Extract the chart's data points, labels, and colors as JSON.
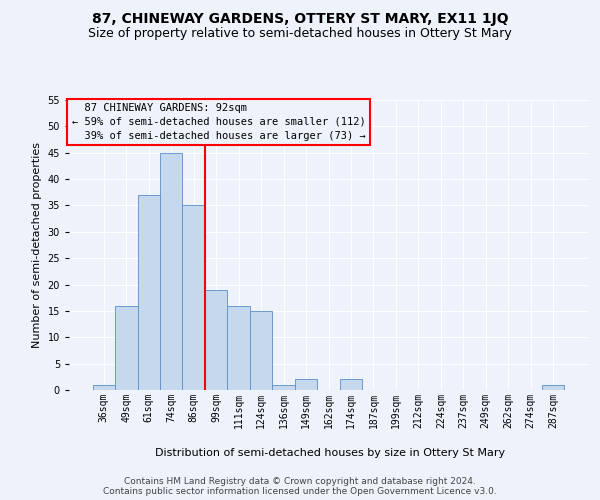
{
  "title": "87, CHINEWAY GARDENS, OTTERY ST MARY, EX11 1JQ",
  "subtitle": "Size of property relative to semi-detached houses in Ottery St Mary",
  "xlabel": "Distribution of semi-detached houses by size in Ottery St Mary",
  "ylabel": "Number of semi-detached properties",
  "bar_color": "#c5d8ed",
  "bar_edgecolor": "#5b8fc9",
  "categories": [
    "36sqm",
    "49sqm",
    "61sqm",
    "74sqm",
    "86sqm",
    "99sqm",
    "111sqm",
    "124sqm",
    "136sqm",
    "149sqm",
    "162sqm",
    "174sqm",
    "187sqm",
    "199sqm",
    "212sqm",
    "224sqm",
    "237sqm",
    "249sqm",
    "262sqm",
    "274sqm",
    "287sqm"
  ],
  "values": [
    1,
    16,
    37,
    45,
    35,
    19,
    16,
    15,
    1,
    2,
    0,
    2,
    0,
    0,
    0,
    0,
    0,
    0,
    0,
    0,
    1
  ],
  "ylim": [
    0,
    55
  ],
  "yticks": [
    0,
    5,
    10,
    15,
    20,
    25,
    30,
    35,
    40,
    45,
    50,
    55
  ],
  "property_label": "87 CHINEWAY GARDENS: 92sqm",
  "pct_smaller": 59,
  "n_smaller": 112,
  "pct_larger": 39,
  "n_larger": 73,
  "vline_position": 4.5,
  "footer_line1": "Contains HM Land Registry data © Crown copyright and database right 2024.",
  "footer_line2": "Contains public sector information licensed under the Open Government Licence v3.0.",
  "background_color": "#eef2fa",
  "grid_color": "#ffffff",
  "title_fontsize": 10,
  "subtitle_fontsize": 9,
  "axis_label_fontsize": 8,
  "tick_fontsize": 7,
  "annotation_fontsize": 7.5,
  "footer_fontsize": 6.5
}
